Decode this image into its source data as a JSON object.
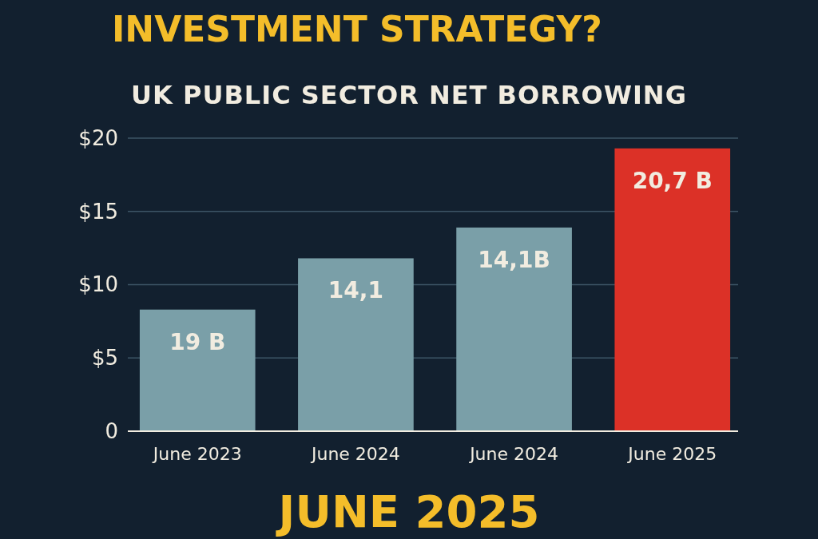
{
  "chart_data": {
    "type": "bar",
    "title": "INVESTMENT STRATEGY?",
    "subtitle": "UK PUBLIC SECTOR NET BORROWING",
    "categories": [
      "June 2023",
      "June 2024",
      "June 2024",
      "June 2025"
    ],
    "values": [
      8.3,
      11.8,
      13.9,
      19.3
    ],
    "colors": [
      "#7a9fa8",
      "#7a9fa8",
      "#7a9fa8",
      "#dc3127"
    ],
    "ylim": [
      0,
      20
    ],
    "yticks": [
      {
        "value": 0,
        "label": "0"
      },
      {
        "value": 5,
        "label": "$5"
      },
      {
        "value": 10,
        "label": "$10"
      },
      {
        "value": 15,
        "label": "$15"
      },
      {
        "value": 20,
        "label": "$20"
      }
    ],
    "grid": "y",
    "annotations": [
      "19 B",
      "14,1",
      "14,1B",
      "20,7 B",
      "JUNE 2025"
    ]
  }
}
